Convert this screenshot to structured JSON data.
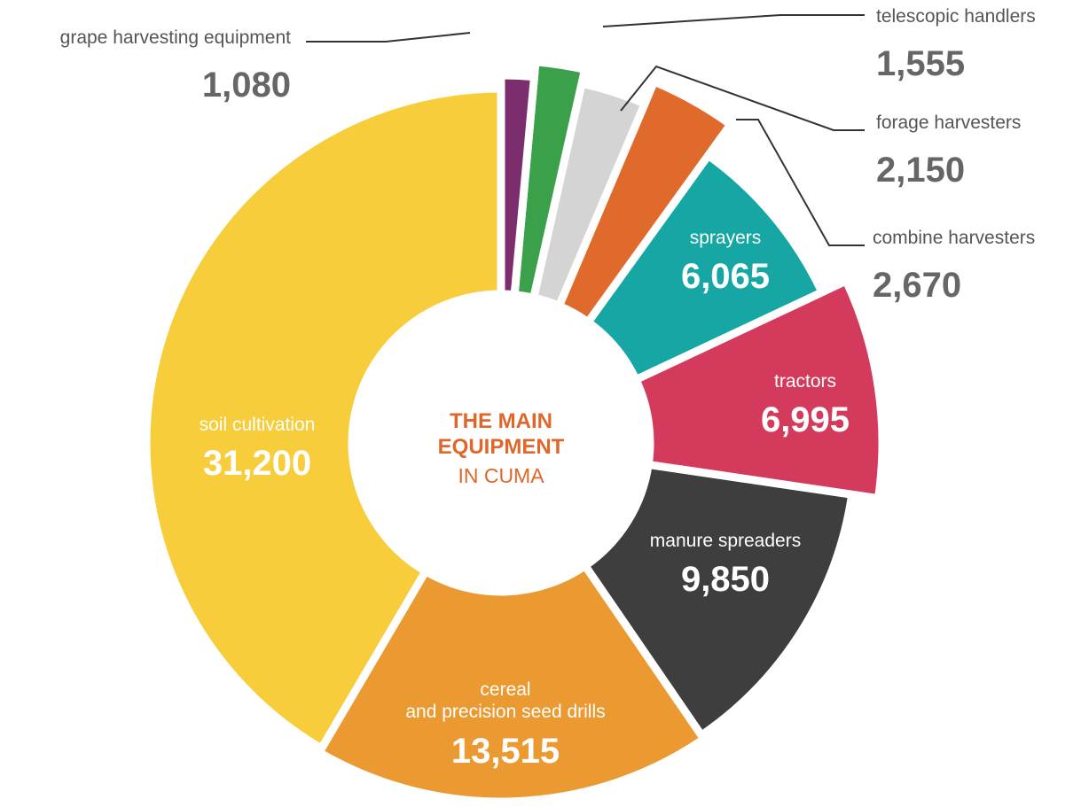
{
  "chart_data": {
    "type": "donut",
    "title": "THE MAIN EQUIPMENT",
    "subtitle": "IN CUMA",
    "categories": [
      "grape harvesting equipment",
      "telescopic handlers",
      "forage harvesters",
      "combine harvesters",
      "sprayers",
      "tractors",
      "manure spreaders",
      "cereal\nand precision seed drills",
      "soil cultivation"
    ],
    "values": [
      1080,
      1555,
      2150,
      2670,
      6065,
      6995,
      9850,
      13515,
      31200
    ],
    "value_labels": [
      "1,080",
      "1,555",
      "2,150",
      "2,670",
      "6,065",
      "6,995",
      "9,850",
      "13,515",
      "31,200"
    ],
    "colors": [
      "#7b2d6e",
      "#3aa04a",
      "#d4d4d4",
      "#e06a2c",
      "#16a6a3",
      "#d43a5b",
      "#3e3e3e",
      "#eb9a31",
      "#f8cd3c"
    ]
  }
}
